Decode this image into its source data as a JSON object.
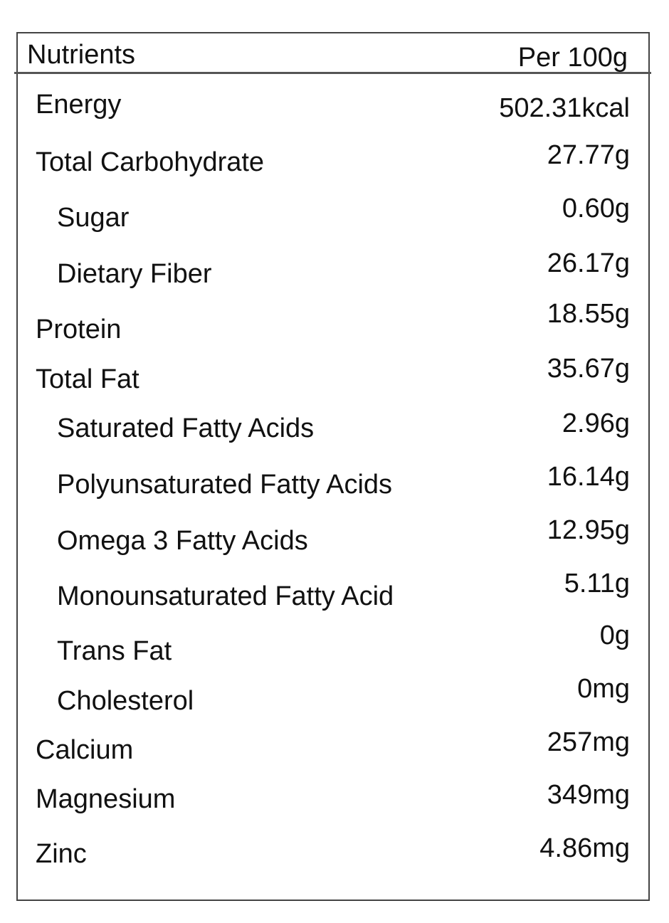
{
  "header": {
    "nutrient_label": "Nutrients",
    "per_label": "Per 100g"
  },
  "rows": [
    {
      "label": "Energy",
      "value": "502.31kcal",
      "indent": false
    },
    {
      "label": "Total Carbohydrate",
      "value": "27.77g",
      "indent": false
    },
    {
      "label": "Sugar",
      "value": "0.60g",
      "indent": true
    },
    {
      "label": "Dietary Fiber",
      "value": "26.17g",
      "indent": true
    },
    {
      "label": "Protein",
      "value": "18.55g",
      "indent": false
    },
    {
      "label": "Total Fat",
      "value": "35.67g",
      "indent": false
    },
    {
      "label": "Saturated Fatty Acids",
      "value": "2.96g",
      "indent": true
    },
    {
      "label": "Polyunsaturated Fatty Acids",
      "value": "16.14g",
      "indent": true
    },
    {
      "label": "Omega 3 Fatty Acids",
      "value": "12.95g",
      "indent": true
    },
    {
      "label": "Monounsaturated Fatty Acid",
      "value": "5.11g",
      "indent": true
    },
    {
      "label": "Trans Fat",
      "value": "0g",
      "indent": true
    },
    {
      "label": "Cholesterol",
      "value": "0mg",
      "indent": true
    },
    {
      "label": "Calcium",
      "value": "257mg",
      "indent": false
    },
    {
      "label": "Magnesium",
      "value": "349mg",
      "indent": false
    },
    {
      "label": "Zinc",
      "value": "4.86mg",
      "indent": false
    }
  ]
}
